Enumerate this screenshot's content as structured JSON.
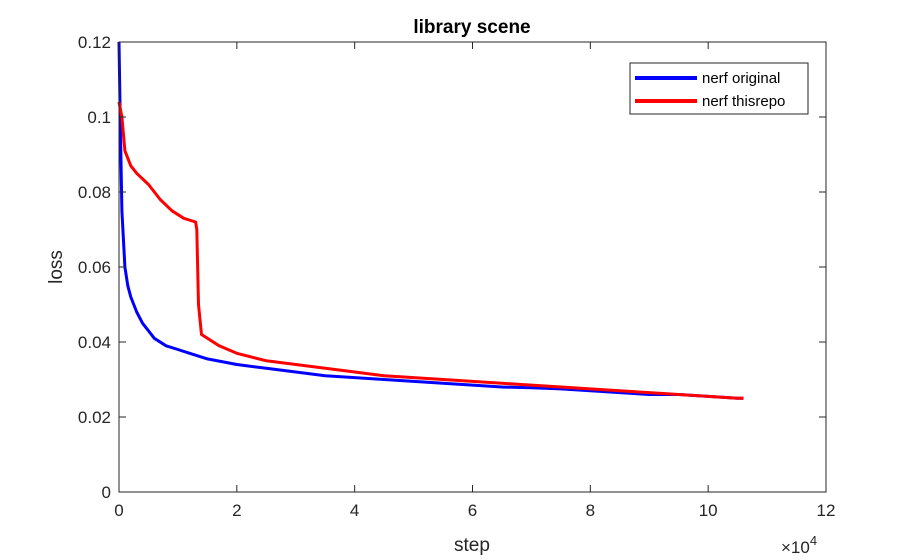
{
  "chart_data": {
    "type": "line",
    "title": "library scene",
    "xlabel": "step",
    "ylabel": "loss",
    "x_exponent_label": "×10",
    "x_exponent_power": "4",
    "xlim": [
      0,
      12
    ],
    "ylim": [
      0,
      0.12
    ],
    "xticks": [
      "0",
      "2",
      "4",
      "6",
      "8",
      "10",
      "12"
    ],
    "yticks": [
      "0",
      "0.02",
      "0.04",
      "0.06",
      "0.08",
      "0.1",
      "0.12"
    ],
    "legend_position": "top-right",
    "grid": false,
    "series": [
      {
        "name": "nerf original",
        "color": "#0000ff",
        "x": [
          0,
          0.02,
          0.05,
          0.1,
          0.15,
          0.2,
          0.3,
          0.4,
          0.5,
          0.6,
          0.8,
          1.0,
          1.2,
          1.5,
          2.0,
          2.5,
          3.0,
          3.5,
          4.0,
          4.5,
          5.0,
          5.5,
          6.0,
          6.5,
          7.0,
          7.5,
          8.0,
          8.5,
          9.0,
          9.5,
          10.0,
          10.5,
          10.6
        ],
        "y": [
          0.12,
          0.1,
          0.075,
          0.06,
          0.055,
          0.052,
          0.048,
          0.045,
          0.043,
          0.041,
          0.039,
          0.038,
          0.037,
          0.0355,
          0.034,
          0.033,
          0.032,
          0.031,
          0.0305,
          0.03,
          0.0295,
          0.029,
          0.0285,
          0.028,
          0.0278,
          0.0275,
          0.027,
          0.0265,
          0.026,
          0.026,
          0.0255,
          0.025,
          0.025
        ]
      },
      {
        "name": "nerf thisrepo",
        "color": "#ff0000",
        "x": [
          0,
          0.05,
          0.1,
          0.2,
          0.3,
          0.5,
          0.7,
          0.9,
          1.1,
          1.3,
          1.32,
          1.35,
          1.4,
          1.5,
          1.7,
          2.0,
          2.5,
          3.0,
          3.5,
          4.0,
          4.5,
          5.0,
          5.5,
          6.0,
          6.5,
          7.0,
          7.5,
          8.0,
          8.5,
          9.0,
          9.5,
          10.0,
          10.5,
          10.6
        ],
        "y": [
          0.104,
          0.1,
          0.091,
          0.087,
          0.085,
          0.082,
          0.078,
          0.075,
          0.073,
          0.072,
          0.07,
          0.05,
          0.042,
          0.041,
          0.039,
          0.037,
          0.035,
          0.034,
          0.033,
          0.032,
          0.031,
          0.0305,
          0.03,
          0.0295,
          0.029,
          0.0285,
          0.028,
          0.0275,
          0.027,
          0.0265,
          0.026,
          0.0255,
          0.025,
          0.025
        ]
      }
    ]
  }
}
